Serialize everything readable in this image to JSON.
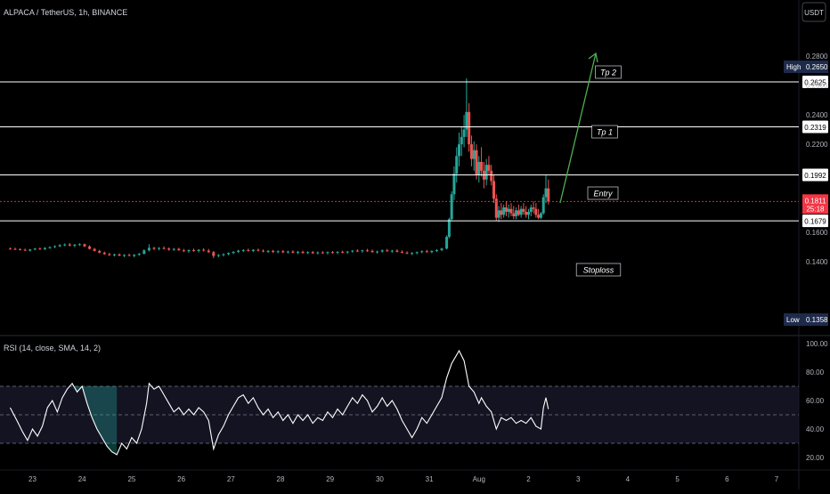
{
  "header": {
    "symbol": "ALPACA / TetherUS, 1h, BINANCE",
    "currency_button": "USDT"
  },
  "price_scale": {
    "ticks": [
      {
        "value": 0.28,
        "label": "0.2800"
      },
      {
        "value": 0.26,
        "label": "0.2600"
      },
      {
        "value": 0.24,
        "label": "0.2400"
      },
      {
        "value": 0.22,
        "label": "0.2200"
      },
      {
        "value": 0.16,
        "label": "0.1600"
      },
      {
        "value": 0.14,
        "label": "0.1400"
      }
    ],
    "high_label": "High",
    "high_value": "0.2650",
    "low_label": "Low",
    "low_value": "0.1358",
    "current_price": "0.1811",
    "countdown": "25:18"
  },
  "levels": [
    {
      "value": 0.2625,
      "price_label": "0.2625",
      "name": "Tp 2"
    },
    {
      "value": 0.2319,
      "price_label": "0.2319",
      "name": "Tp 1"
    },
    {
      "value": 0.1992,
      "price_label": "0.1992",
      "name": "Entry"
    },
    {
      "value": 0.1679,
      "price_label": "0.1679",
      "name": "Stoploss"
    }
  ],
  "rsi": {
    "label": "RSI (14, close, SMA, 14, 2)",
    "ticks": [
      {
        "value": 100,
        "label": "100.00"
      },
      {
        "value": 80,
        "label": "80.00"
      },
      {
        "value": 60,
        "label": "60.00"
      },
      {
        "value": 40,
        "label": "40.00"
      },
      {
        "value": 20,
        "label": "20.00"
      }
    ],
    "band_upper": 70,
    "band_mid": 50,
    "band_lower": 30
  },
  "time_axis": {
    "labels": [
      "23",
      "24",
      "25",
      "26",
      "27",
      "28",
      "29",
      "30",
      "31",
      "Aug",
      "2",
      "3",
      "4",
      "5",
      "6",
      "7"
    ]
  },
  "colors": {
    "up": "#26a69a",
    "down": "#ef5350",
    "line": "#ffffff",
    "arrow": "#4caf50",
    "current": "#f23645",
    "rsi_band": "#1a1a2e",
    "high_low_tag": "#1e2a4a"
  },
  "chart_data": {
    "type": "candlestick",
    "title": "ALPACA / TetherUS, 1h, BINANCE",
    "x_unit": "days (day 23 = start of label 23; Aug = day 32)",
    "xlim": [
      22.5,
      38.5
    ],
    "ylim": [
      0.13,
      0.29
    ],
    "ohlc_key": "[x, open, high, low, close]",
    "candles": [
      [
        22.55,
        0.149,
        0.1498,
        0.1484,
        0.1488
      ],
      [
        22.65,
        0.1488,
        0.1496,
        0.148,
        0.1485
      ],
      [
        22.75,
        0.1485,
        0.1492,
        0.1478,
        0.1482
      ],
      [
        22.85,
        0.1482,
        0.149,
        0.1474,
        0.1476
      ],
      [
        22.95,
        0.1476,
        0.1488,
        0.147,
        0.1484
      ],
      [
        23.05,
        0.1484,
        0.1494,
        0.1478,
        0.149
      ],
      [
        23.15,
        0.149,
        0.1498,
        0.1482,
        0.1486
      ],
      [
        23.25,
        0.1486,
        0.15,
        0.148,
        0.1494
      ],
      [
        23.35,
        0.1494,
        0.1505,
        0.1488,
        0.15
      ],
      [
        23.45,
        0.15,
        0.1512,
        0.1494,
        0.1506
      ],
      [
        23.55,
        0.1506,
        0.152,
        0.15,
        0.1514
      ],
      [
        23.65,
        0.1514,
        0.1525,
        0.1506,
        0.1518
      ],
      [
        23.75,
        0.1518,
        0.1528,
        0.1505,
        0.151
      ],
      [
        23.85,
        0.151,
        0.1522,
        0.15,
        0.1516
      ],
      [
        23.95,
        0.1516,
        0.1526,
        0.1508,
        0.152
      ],
      [
        24.05,
        0.152,
        0.1524,
        0.15,
        0.1505
      ],
      [
        24.15,
        0.1505,
        0.1512,
        0.1484,
        0.1488
      ],
      [
        24.25,
        0.1488,
        0.1495,
        0.147,
        0.1474
      ],
      [
        24.35,
        0.1474,
        0.1482,
        0.1458,
        0.1462
      ],
      [
        24.45,
        0.1462,
        0.147,
        0.1448,
        0.1452
      ],
      [
        24.55,
        0.1452,
        0.1462,
        0.144,
        0.1445
      ],
      [
        24.65,
        0.1445,
        0.1456,
        0.1436,
        0.145
      ],
      [
        24.75,
        0.145,
        0.1458,
        0.1438,
        0.1442
      ],
      [
        24.85,
        0.1442,
        0.1452,
        0.1432,
        0.1446
      ],
      [
        24.95,
        0.1446,
        0.1456,
        0.1438,
        0.144
      ],
      [
        25.05,
        0.144,
        0.1452,
        0.143,
        0.1448
      ],
      [
        25.15,
        0.1448,
        0.146,
        0.144,
        0.1455
      ],
      [
        25.25,
        0.1455,
        0.1485,
        0.145,
        0.1478
      ],
      [
        25.35,
        0.1478,
        0.152,
        0.147,
        0.1495
      ],
      [
        25.45,
        0.1495,
        0.1502,
        0.148,
        0.1488
      ],
      [
        25.55,
        0.1488,
        0.15,
        0.1478,
        0.1494
      ],
      [
        25.65,
        0.1494,
        0.1505,
        0.1484,
        0.149
      ],
      [
        25.75,
        0.149,
        0.1498,
        0.1476,
        0.1482
      ],
      [
        25.85,
        0.1482,
        0.1494,
        0.1474,
        0.1488
      ],
      [
        25.95,
        0.1488,
        0.1496,
        0.1476,
        0.1478
      ],
      [
        26.05,
        0.1478,
        0.1488,
        0.1466,
        0.1472
      ],
      [
        26.15,
        0.1472,
        0.1484,
        0.1462,
        0.148
      ],
      [
        26.25,
        0.148,
        0.149,
        0.1468,
        0.1474
      ],
      [
        26.35,
        0.1474,
        0.1486,
        0.1464,
        0.1482
      ],
      [
        26.45,
        0.1482,
        0.1492,
        0.147,
        0.1476
      ],
      [
        26.55,
        0.1476,
        0.1488,
        0.146,
        0.1466
      ],
      [
        26.65,
        0.1466,
        0.1474,
        0.1425,
        0.144
      ],
      [
        26.75,
        0.144,
        0.1452,
        0.143,
        0.1446
      ],
      [
        26.85,
        0.1446,
        0.1458,
        0.1436,
        0.1452
      ],
      [
        26.95,
        0.1452,
        0.1464,
        0.1444,
        0.146
      ],
      [
        27.05,
        0.146,
        0.1472,
        0.1452,
        0.1468
      ],
      [
        27.15,
        0.1468,
        0.1482,
        0.146,
        0.1476
      ],
      [
        27.25,
        0.1476,
        0.1486,
        0.1466,
        0.148
      ],
      [
        27.35,
        0.148,
        0.149,
        0.147,
        0.1474
      ],
      [
        27.45,
        0.1474,
        0.1486,
        0.1466,
        0.1482
      ],
      [
        27.55,
        0.1482,
        0.149,
        0.147,
        0.1476
      ],
      [
        27.65,
        0.1476,
        0.1484,
        0.1464,
        0.147
      ],
      [
        27.75,
        0.147,
        0.148,
        0.146,
        0.1474
      ],
      [
        27.85,
        0.1474,
        0.1482,
        0.1462,
        0.1466
      ],
      [
        27.95,
        0.1466,
        0.1478,
        0.1458,
        0.1472
      ],
      [
        28.05,
        0.1472,
        0.148,
        0.146,
        0.1464
      ],
      [
        28.15,
        0.1464,
        0.1476,
        0.1456,
        0.147
      ],
      [
        28.25,
        0.147,
        0.1478,
        0.1458,
        0.1462
      ],
      [
        28.35,
        0.1462,
        0.1474,
        0.1452,
        0.1468
      ],
      [
        28.45,
        0.1468,
        0.1476,
        0.1456,
        0.146
      ],
      [
        28.55,
        0.146,
        0.1472,
        0.1452,
        0.1466
      ],
      [
        28.65,
        0.1466,
        0.1474,
        0.1454,
        0.1458
      ],
      [
        28.75,
        0.1458,
        0.147,
        0.145,
        0.1464
      ],
      [
        28.85,
        0.1464,
        0.1472,
        0.1454,
        0.146
      ],
      [
        28.95,
        0.146,
        0.147,
        0.145,
        0.1466
      ],
      [
        29.05,
        0.1466,
        0.1474,
        0.1456,
        0.1462
      ],
      [
        29.15,
        0.1462,
        0.1472,
        0.1452,
        0.1468
      ],
      [
        29.25,
        0.1468,
        0.1476,
        0.1458,
        0.1464
      ],
      [
        29.35,
        0.1464,
        0.1474,
        0.1454,
        0.147
      ],
      [
        29.45,
        0.147,
        0.148,
        0.1462,
        0.1476
      ],
      [
        29.55,
        0.1476,
        0.1486,
        0.1466,
        0.1472
      ],
      [
        29.65,
        0.1472,
        0.1482,
        0.1462,
        0.1478
      ],
      [
        29.75,
        0.1478,
        0.1488,
        0.1468,
        0.1474
      ],
      [
        29.85,
        0.1474,
        0.1484,
        0.1462,
        0.1466
      ],
      [
        29.95,
        0.1466,
        0.1476,
        0.1456,
        0.147
      ],
      [
        30.05,
        0.147,
        0.1484,
        0.1462,
        0.1478
      ],
      [
        30.15,
        0.1478,
        0.1488,
        0.1468,
        0.1472
      ],
      [
        30.25,
        0.1472,
        0.1482,
        0.1462,
        0.1476
      ],
      [
        30.35,
        0.1476,
        0.1486,
        0.1464,
        0.1468
      ],
      [
        30.45,
        0.1468,
        0.1478,
        0.1458,
        0.1462
      ],
      [
        30.55,
        0.1462,
        0.1472,
        0.1452,
        0.1456
      ],
      [
        30.65,
        0.1456,
        0.1466,
        0.1446,
        0.146
      ],
      [
        30.75,
        0.146,
        0.147,
        0.145,
        0.1466
      ],
      [
        30.85,
        0.1466,
        0.1478,
        0.1458,
        0.1472
      ],
      [
        30.95,
        0.1472,
        0.1482,
        0.1462,
        0.1466
      ],
      [
        31.05,
        0.1466,
        0.1478,
        0.1458,
        0.1474
      ],
      [
        31.15,
        0.1474,
        0.1486,
        0.1466,
        0.148
      ],
      [
        31.25,
        0.148,
        0.1496,
        0.1472,
        0.149
      ],
      [
        31.35,
        0.149,
        0.158,
        0.1484,
        0.157
      ],
      [
        31.4,
        0.157,
        0.17,
        0.156,
        0.169
      ],
      [
        31.45,
        0.169,
        0.188,
        0.168,
        0.186
      ],
      [
        31.5,
        0.186,
        0.205,
        0.182,
        0.2
      ],
      [
        31.55,
        0.2,
        0.218,
        0.194,
        0.212
      ],
      [
        31.6,
        0.212,
        0.228,
        0.205,
        0.22
      ],
      [
        31.65,
        0.22,
        0.232,
        0.212,
        0.225
      ],
      [
        31.7,
        0.225,
        0.24,
        0.218,
        0.23
      ],
      [
        31.75,
        0.23,
        0.265,
        0.225,
        0.242
      ],
      [
        31.8,
        0.242,
        0.248,
        0.215,
        0.22
      ],
      [
        31.85,
        0.22,
        0.226,
        0.205,
        0.21
      ],
      [
        31.9,
        0.21,
        0.222,
        0.202,
        0.216
      ],
      [
        31.95,
        0.216,
        0.22,
        0.196,
        0.199
      ],
      [
        32.0,
        0.199,
        0.212,
        0.194,
        0.208
      ],
      [
        32.05,
        0.208,
        0.218,
        0.198,
        0.202
      ],
      [
        32.1,
        0.202,
        0.208,
        0.19,
        0.196
      ],
      [
        32.15,
        0.196,
        0.21,
        0.192,
        0.206
      ],
      [
        32.2,
        0.206,
        0.212,
        0.199,
        0.202
      ],
      [
        32.25,
        0.202,
        0.206,
        0.192,
        0.195
      ],
      [
        32.3,
        0.195,
        0.199,
        0.18,
        0.183
      ],
      [
        32.35,
        0.183,
        0.186,
        0.168,
        0.17
      ],
      [
        32.4,
        0.17,
        0.178,
        0.167,
        0.175
      ],
      [
        32.45,
        0.175,
        0.18,
        0.169,
        0.172
      ],
      [
        32.5,
        0.172,
        0.179,
        0.17,
        0.177
      ],
      [
        32.55,
        0.177,
        0.181,
        0.171,
        0.174
      ],
      [
        32.6,
        0.174,
        0.179,
        0.17,
        0.176
      ],
      [
        32.65,
        0.176,
        0.18,
        0.171,
        0.173
      ],
      [
        32.7,
        0.173,
        0.178,
        0.169,
        0.171
      ],
      [
        32.75,
        0.171,
        0.177,
        0.169,
        0.175
      ],
      [
        32.8,
        0.175,
        0.179,
        0.171,
        0.172
      ],
      [
        32.85,
        0.172,
        0.178,
        0.17,
        0.176
      ],
      [
        32.9,
        0.176,
        0.18,
        0.172,
        0.174
      ],
      [
        32.95,
        0.174,
        0.178,
        0.17,
        0.172
      ],
      [
        33.0,
        0.172,
        0.176,
        0.169,
        0.174
      ],
      [
        33.05,
        0.174,
        0.179,
        0.171,
        0.177
      ],
      [
        33.1,
        0.177,
        0.181,
        0.173,
        0.176
      ],
      [
        33.15,
        0.176,
        0.18,
        0.17,
        0.172
      ],
      [
        33.2,
        0.172,
        0.176,
        0.169,
        0.17
      ],
      [
        33.25,
        0.17,
        0.174,
        0.169,
        0.173
      ],
      [
        33.3,
        0.173,
        0.186,
        0.172,
        0.184
      ],
      [
        33.35,
        0.184,
        0.199,
        0.18,
        0.19
      ],
      [
        33.4,
        0.19,
        0.196,
        0.179,
        0.1811
      ]
    ],
    "rsi_points": [
      [
        22.55,
        55
      ],
      [
        22.7,
        45
      ],
      [
        22.8,
        38
      ],
      [
        22.9,
        32
      ],
      [
        23.0,
        40
      ],
      [
        23.1,
        35
      ],
      [
        23.2,
        42
      ],
      [
        23.3,
        55
      ],
      [
        23.4,
        60
      ],
      [
        23.5,
        52
      ],
      [
        23.6,
        62
      ],
      [
        23.7,
        68
      ],
      [
        23.8,
        72
      ],
      [
        23.9,
        66
      ],
      [
        24.0,
        70
      ],
      [
        24.1,
        58
      ],
      [
        24.2,
        48
      ],
      [
        24.3,
        40
      ],
      [
        24.4,
        34
      ],
      [
        24.5,
        28
      ],
      [
        24.6,
        24
      ],
      [
        24.7,
        22
      ],
      [
        24.8,
        30
      ],
      [
        24.9,
        26
      ],
      [
        25.0,
        34
      ],
      [
        25.1,
        30
      ],
      [
        25.2,
        40
      ],
      [
        25.3,
        58
      ],
      [
        25.35,
        72
      ],
      [
        25.45,
        68
      ],
      [
        25.55,
        70
      ],
      [
        25.65,
        64
      ],
      [
        25.75,
        58
      ],
      [
        25.85,
        52
      ],
      [
        25.95,
        55
      ],
      [
        26.05,
        50
      ],
      [
        26.15,
        54
      ],
      [
        26.25,
        50
      ],
      [
        26.35,
        55
      ],
      [
        26.45,
        52
      ],
      [
        26.55,
        46
      ],
      [
        26.65,
        26
      ],
      [
        26.75,
        36
      ],
      [
        26.85,
        42
      ],
      [
        26.95,
        50
      ],
      [
        27.05,
        56
      ],
      [
        27.15,
        62
      ],
      [
        27.25,
        64
      ],
      [
        27.35,
        58
      ],
      [
        27.45,
        62
      ],
      [
        27.55,
        55
      ],
      [
        27.65,
        50
      ],
      [
        27.75,
        54
      ],
      [
        27.85,
        48
      ],
      [
        27.95,
        52
      ],
      [
        28.05,
        46
      ],
      [
        28.15,
        50
      ],
      [
        28.25,
        44
      ],
      [
        28.35,
        50
      ],
      [
        28.45,
        46
      ],
      [
        28.55,
        50
      ],
      [
        28.65,
        44
      ],
      [
        28.75,
        48
      ],
      [
        28.85,
        46
      ],
      [
        28.95,
        52
      ],
      [
        29.05,
        48
      ],
      [
        29.15,
        54
      ],
      [
        29.25,
        50
      ],
      [
        29.35,
        56
      ],
      [
        29.45,
        62
      ],
      [
        29.55,
        58
      ],
      [
        29.65,
        64
      ],
      [
        29.75,
        60
      ],
      [
        29.85,
        52
      ],
      [
        29.95,
        56
      ],
      [
        30.05,
        62
      ],
      [
        30.15,
        56
      ],
      [
        30.25,
        60
      ],
      [
        30.35,
        54
      ],
      [
        30.45,
        46
      ],
      [
        30.55,
        40
      ],
      [
        30.65,
        34
      ],
      [
        30.75,
        40
      ],
      [
        30.85,
        48
      ],
      [
        30.95,
        44
      ],
      [
        31.05,
        50
      ],
      [
        31.15,
        56
      ],
      [
        31.25,
        62
      ],
      [
        31.35,
        76
      ],
      [
        31.45,
        86
      ],
      [
        31.55,
        92
      ],
      [
        31.6,
        95
      ],
      [
        31.7,
        88
      ],
      [
        31.8,
        70
      ],
      [
        31.9,
        66
      ],
      [
        32.0,
        58
      ],
      [
        32.05,
        62
      ],
      [
        32.15,
        56
      ],
      [
        32.25,
        52
      ],
      [
        32.35,
        40
      ],
      [
        32.45,
        48
      ],
      [
        32.55,
        46
      ],
      [
        32.65,
        48
      ],
      [
        32.75,
        44
      ],
      [
        32.85,
        46
      ],
      [
        32.95,
        44
      ],
      [
        33.05,
        48
      ],
      [
        33.15,
        42
      ],
      [
        33.25,
        40
      ],
      [
        33.3,
        55
      ],
      [
        33.35,
        62
      ],
      [
        33.4,
        54
      ]
    ]
  }
}
